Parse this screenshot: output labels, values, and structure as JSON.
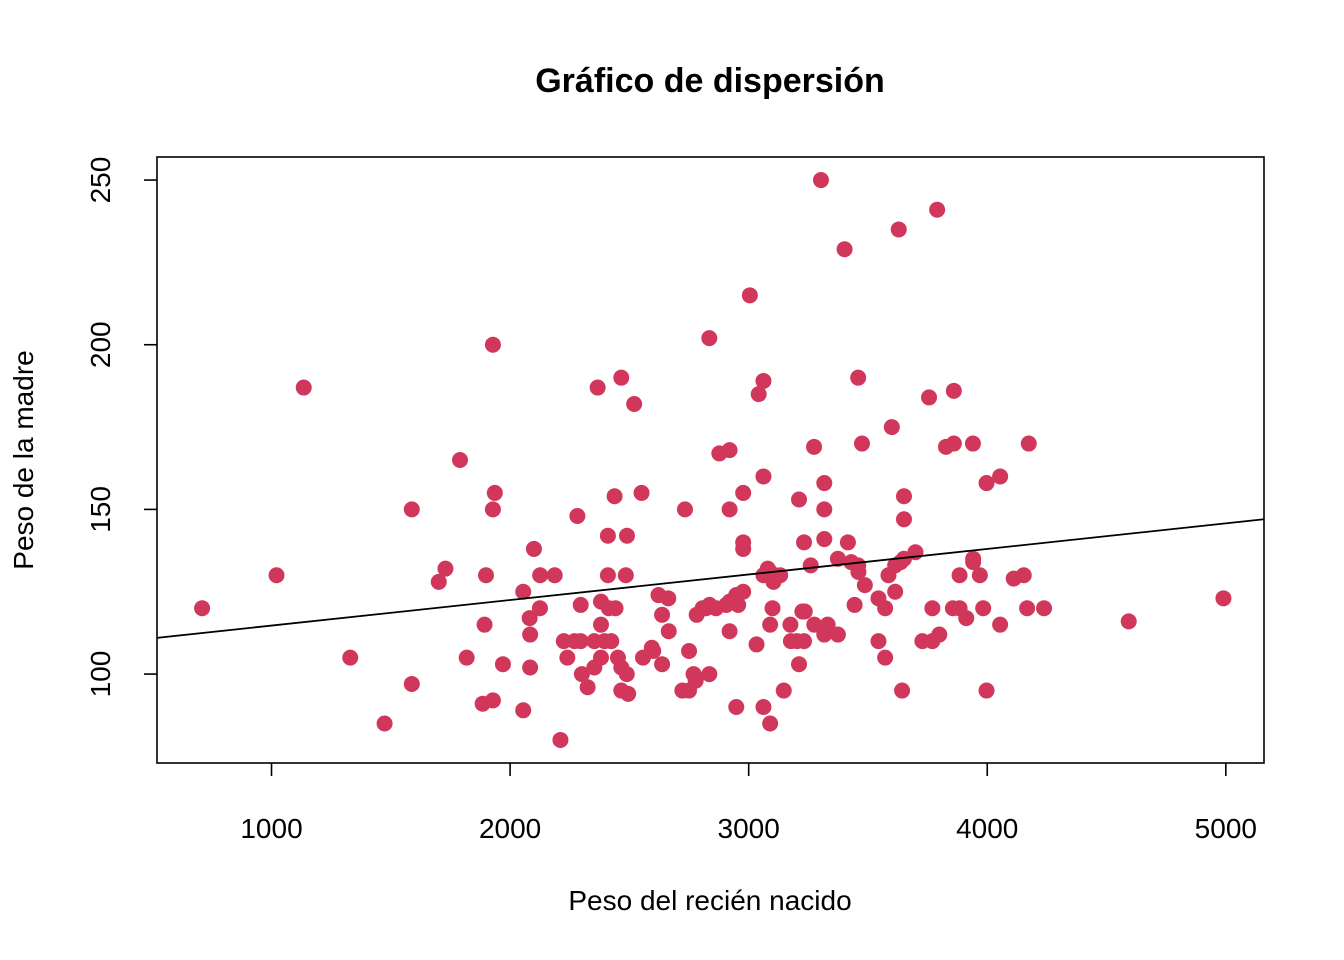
{
  "chart_data": {
    "type": "scatter",
    "title": "Gráfico de dispersión",
    "xlabel": "Peso del recién nacido",
    "ylabel": "Peso de la madre",
    "xlim": [
      520,
      5160
    ],
    "ylim": [
      73,
      257
    ],
    "x_ticks": [
      1000,
      2000,
      3000,
      4000,
      5000
    ],
    "x_tick_labels": [
      "1000",
      "2000",
      "3000",
      "4000",
      "5000"
    ],
    "y_ticks": [
      100,
      150,
      200,
      250
    ],
    "y_tick_labels": [
      "100",
      "150",
      "200",
      "250"
    ],
    "grid": false,
    "point_color": "#D1375B",
    "line_color": "#000000",
    "regression_line": {
      "x": [
        520,
        5160
      ],
      "y": [
        111,
        147
      ]
    },
    "points": [
      [
        709,
        120
      ],
      [
        1021,
        130
      ],
      [
        1135,
        187
      ],
      [
        1330,
        105
      ],
      [
        1474,
        85
      ],
      [
        1588,
        97
      ],
      [
        1588,
        150
      ],
      [
        1701,
        128
      ],
      [
        1729,
        132
      ],
      [
        1790,
        165
      ],
      [
        1818,
        105
      ],
      [
        1885,
        91
      ],
      [
        1893,
        115
      ],
      [
        1899,
        130
      ],
      [
        1928,
        150
      ],
      [
        1928,
        200
      ],
      [
        1928,
        92
      ],
      [
        1936,
        155
      ],
      [
        1970,
        103
      ],
      [
        2055,
        89
      ],
      [
        2055,
        125
      ],
      [
        2082,
        117
      ],
      [
        2084,
        112
      ],
      [
        2084,
        102
      ],
      [
        2100,
        138
      ],
      [
        2125,
        120
      ],
      [
        2126,
        130
      ],
      [
        2187,
        130
      ],
      [
        2211,
        80
      ],
      [
        2225,
        110
      ],
      [
        2240,
        105
      ],
      [
        2270,
        110
      ],
      [
        2282,
        148
      ],
      [
        2296,
        110
      ],
      [
        2296,
        121
      ],
      [
        2301,
        100
      ],
      [
        2325,
        96
      ],
      [
        2353,
        110
      ],
      [
        2353,
        102
      ],
      [
        2367,
        187
      ],
      [
        2381,
        122
      ],
      [
        2381,
        105
      ],
      [
        2381,
        115
      ],
      [
        2396,
        110
      ],
      [
        2410,
        142
      ],
      [
        2410,
        130
      ],
      [
        2414,
        120
      ],
      [
        2424,
        110
      ],
      [
        2438,
        154
      ],
      [
        2442,
        120
      ],
      [
        2452,
        105
      ],
      [
        2466,
        95
      ],
      [
        2466,
        190
      ],
      [
        2466,
        102
      ],
      [
        2485,
        130
      ],
      [
        2489,
        100
      ],
      [
        2490,
        142
      ],
      [
        2495,
        94
      ],
      [
        2520,
        182
      ],
      [
        2551,
        155
      ],
      [
        2557,
        105
      ],
      [
        2594,
        108
      ],
      [
        2600,
        107
      ],
      [
        2622,
        124
      ],
      [
        2637,
        118
      ],
      [
        2637,
        103
      ],
      [
        2663,
        123
      ],
      [
        2665,
        113
      ],
      [
        2722,
        95
      ],
      [
        2733,
        150
      ],
      [
        2750,
        107
      ],
      [
        2750,
        95
      ],
      [
        2769,
        100
      ],
      [
        2778,
        98
      ],
      [
        2782,
        118
      ],
      [
        2807,
        120
      ],
      [
        2821,
        120
      ],
      [
        2835,
        202
      ],
      [
        2835,
        100
      ],
      [
        2836,
        121
      ],
      [
        2863,
        120
      ],
      [
        2877,
        167
      ],
      [
        2906,
        121
      ],
      [
        2920,
        168
      ],
      [
        2920,
        150
      ],
      [
        2920,
        113
      ],
      [
        2920,
        122
      ],
      [
        2948,
        124
      ],
      [
        2948,
        90
      ],
      [
        2956,
        121
      ],
      [
        2977,
        155
      ],
      [
        2977,
        140
      ],
      [
        2977,
        138
      ],
      [
        2977,
        125
      ],
      [
        3005,
        215
      ],
      [
        3033,
        109
      ],
      [
        3042,
        185
      ],
      [
        3062,
        189
      ],
      [
        3062,
        160
      ],
      [
        3062,
        90
      ],
      [
        3062,
        130
      ],
      [
        3080,
        132
      ],
      [
        3090,
        85
      ],
      [
        3090,
        115
      ],
      [
        3090,
        131
      ],
      [
        3100,
        120
      ],
      [
        3104,
        128
      ],
      [
        3132,
        130
      ],
      [
        3147,
        95
      ],
      [
        3175,
        115
      ],
      [
        3177,
        110
      ],
      [
        3203,
        110
      ],
      [
        3211,
        153
      ],
      [
        3211,
        103
      ],
      [
        3225,
        119
      ],
      [
        3232,
        110
      ],
      [
        3232,
        140
      ],
      [
        3235,
        119
      ],
      [
        3260,
        133
      ],
      [
        3274,
        169
      ],
      [
        3275,
        115
      ],
      [
        3303,
        250
      ],
      [
        3317,
        158
      ],
      [
        3317,
        141
      ],
      [
        3317,
        112
      ],
      [
        3317,
        150
      ],
      [
        3321,
        113
      ],
      [
        3331,
        115
      ],
      [
        3374,
        112
      ],
      [
        3374,
        135
      ],
      [
        3402,
        229
      ],
      [
        3416,
        140
      ],
      [
        3430,
        134
      ],
      [
        3444,
        121
      ],
      [
        3459,
        133
      ],
      [
        3459,
        190
      ],
      [
        3460,
        131
      ],
      [
        3475,
        170
      ],
      [
        3487,
        127
      ],
      [
        3544,
        123
      ],
      [
        3544,
        110
      ],
      [
        3572,
        120
      ],
      [
        3572,
        105
      ],
      [
        3586,
        130
      ],
      [
        3600,
        175
      ],
      [
        3614,
        133
      ],
      [
        3614,
        125
      ],
      [
        3629,
        235
      ],
      [
        3637,
        134
      ],
      [
        3643,
        95
      ],
      [
        3651,
        135
      ],
      [
        3651,
        154
      ],
      [
        3651,
        147
      ],
      [
        3699,
        137
      ],
      [
        3728,
        110
      ],
      [
        3756,
        184
      ],
      [
        3770,
        120
      ],
      [
        3770,
        110
      ],
      [
        3790,
        241
      ],
      [
        3799,
        112
      ],
      [
        3827,
        169
      ],
      [
        3856,
        120
      ],
      [
        3860,
        186
      ],
      [
        3860,
        170
      ],
      [
        3884,
        130
      ],
      [
        3884,
        120
      ],
      [
        3912,
        117
      ],
      [
        3940,
        170
      ],
      [
        3941,
        135
      ],
      [
        3941,
        134
      ],
      [
        3969,
        130
      ],
      [
        3983,
        120
      ],
      [
        3997,
        158
      ],
      [
        3997,
        95
      ],
      [
        4054,
        160
      ],
      [
        4054,
        115
      ],
      [
        4111,
        129
      ],
      [
        4153,
        130
      ],
      [
        4167,
        120
      ],
      [
        4174,
        170
      ],
      [
        4238,
        120
      ],
      [
        4593,
        116
      ],
      [
        4990,
        123
      ]
    ]
  }
}
